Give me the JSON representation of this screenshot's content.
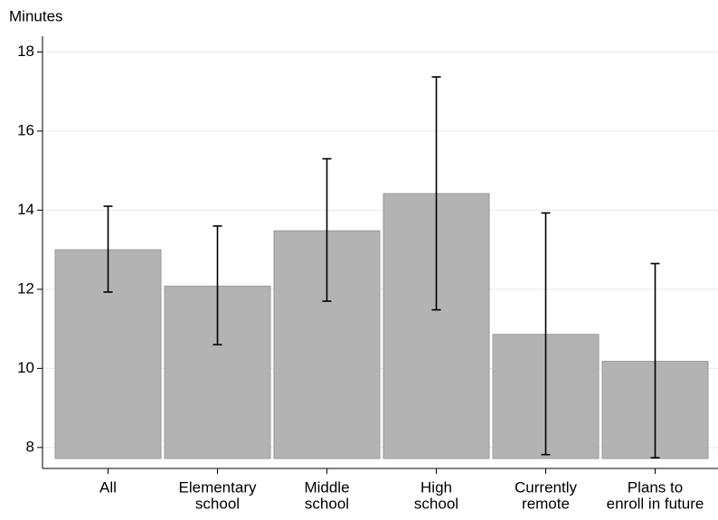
{
  "chart_data": {
    "type": "bar",
    "y_label": "Minutes",
    "categories": [
      [
        "All"
      ],
      [
        "Elementary",
        "school"
      ],
      [
        "Middle",
        "school"
      ],
      [
        "High",
        "school"
      ],
      [
        "Currently",
        "remote"
      ],
      [
        "Plans to",
        "enroll in future"
      ]
    ],
    "values": [
      13.0,
      12.08,
      13.48,
      14.42,
      10.86,
      10.18
    ],
    "error_lower": [
      11.93,
      10.6,
      11.7,
      11.48,
      7.82,
      7.74
    ],
    "error_upper": [
      14.1,
      13.6,
      15.3,
      17.37,
      13.93,
      12.65
    ],
    "color": "#b3b3b3",
    "ylim": [
      7.47,
      18.4
    ],
    "yticks": [
      8,
      10,
      12,
      14,
      16,
      18
    ],
    "grid": true
  }
}
